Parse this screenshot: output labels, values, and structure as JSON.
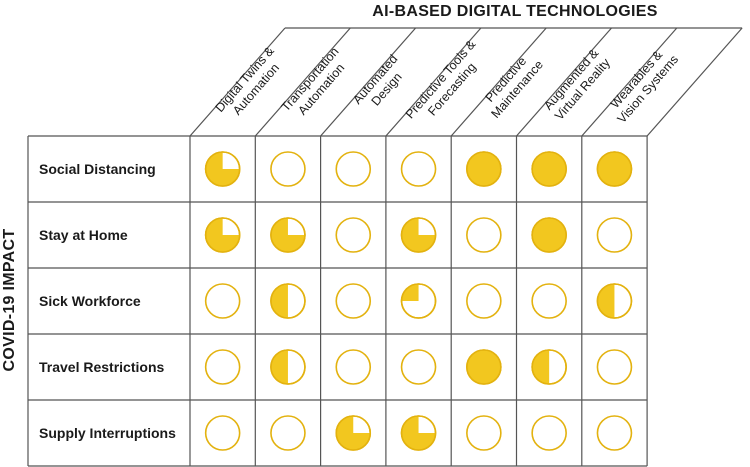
{
  "title": "AI-BASED DIGITAL TECHNOLOGIES",
  "row_axis_label": "COVID-19 IMPACT",
  "columns": [
    {
      "line1": "Digital Twins &",
      "line2": "Automation"
    },
    {
      "line1": "Transportation",
      "line2": "Automation"
    },
    {
      "line1": "Automated",
      "line2": "Design"
    },
    {
      "line1": "Predictive Tools &",
      "line2": "Forecasting"
    },
    {
      "line1": "Predictive",
      "line2": "Maintenance"
    },
    {
      "line1": "Augmented &",
      "line2": "Virtual Reality"
    },
    {
      "line1": "Wearables &",
      "line2": "Vision Systems"
    }
  ],
  "rows": [
    {
      "label": "Social Distancing",
      "levels": [
        0.75,
        0,
        0,
        0,
        1,
        1,
        1
      ]
    },
    {
      "label": "Stay at Home",
      "levels": [
        0.75,
        0.75,
        0,
        0.75,
        0,
        1,
        0
      ]
    },
    {
      "label": "Sick Workforce",
      "levels": [
        0,
        0.5,
        0,
        0.25,
        0,
        0,
        0.5
      ]
    },
    {
      "label": "Travel Restrictions",
      "levels": [
        0,
        0.5,
        0,
        0,
        1,
        0.5,
        0
      ]
    },
    {
      "label": "Supply Interruptions",
      "levels": [
        0,
        0,
        0.75,
        0.75,
        0,
        0,
        0
      ]
    }
  ],
  "colors": {
    "fill": "#f2c71f",
    "line": "#555555",
    "ball_stroke": "#e3b20f",
    "text": "#1a1a1a"
  }
}
